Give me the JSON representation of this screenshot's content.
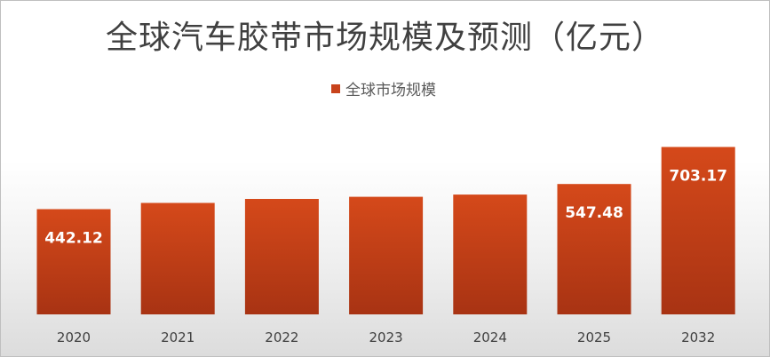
{
  "chart_data": {
    "type": "bar",
    "title": "全球汽车胶带市场规模及预测（亿元）",
    "categories": [
      "2020",
      "2021",
      "2022",
      "2023",
      "2024",
      "2025",
      "2032"
    ],
    "series": [
      {
        "name": "全球市场规模",
        "values": [
          442.12,
          468,
          485,
          494,
          503,
          547.48,
          703.17
        ],
        "data_labels": [
          "442.12",
          "",
          "",
          "",
          "",
          "547.48",
          "703.17"
        ],
        "color": "#c8431c"
      }
    ],
    "ylim": [
      0,
      900
    ],
    "grid": false,
    "legend_position": "top-center"
  }
}
